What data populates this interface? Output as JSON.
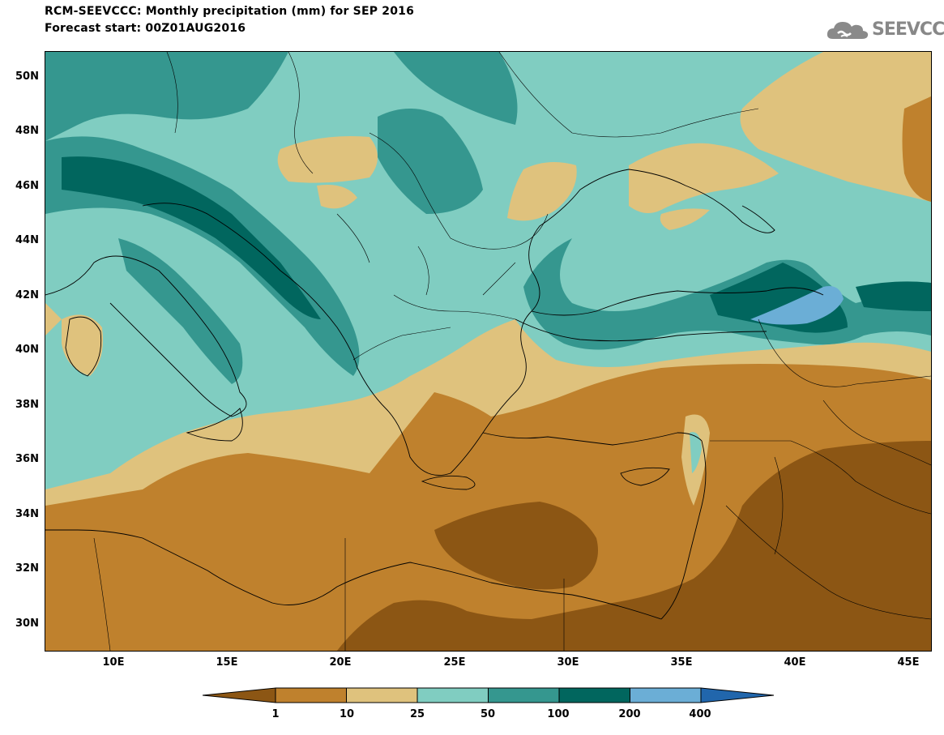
{
  "header": {
    "title_line1": "RCM-SEEVCCC: Monthly precipitation (mm) for SEP 2016",
    "title_line2": "Forecast start: 00Z01AUG2016"
  },
  "logo": {
    "text": "SEEVCCC",
    "icon": "cloud-icon"
  },
  "map": {
    "lat_labels": [
      "50N",
      "48N",
      "46N",
      "44N",
      "42N",
      "40N",
      "38N",
      "36N",
      "34N",
      "32N",
      "30N"
    ],
    "lon_labels": [
      "10E",
      "15E",
      "20E",
      "25E",
      "30E",
      "35E",
      "40E",
      "45E"
    ]
  },
  "legend": {
    "levels": [
      "1",
      "10",
      "25",
      "50",
      "100",
      "200",
      "400"
    ],
    "colors": [
      "#8c5614",
      "#bf812d",
      "#dfc27d",
      "#80cdc1",
      "#35978f",
      "#01665e",
      "#6baed6",
      "#2166ac"
    ]
  }
}
